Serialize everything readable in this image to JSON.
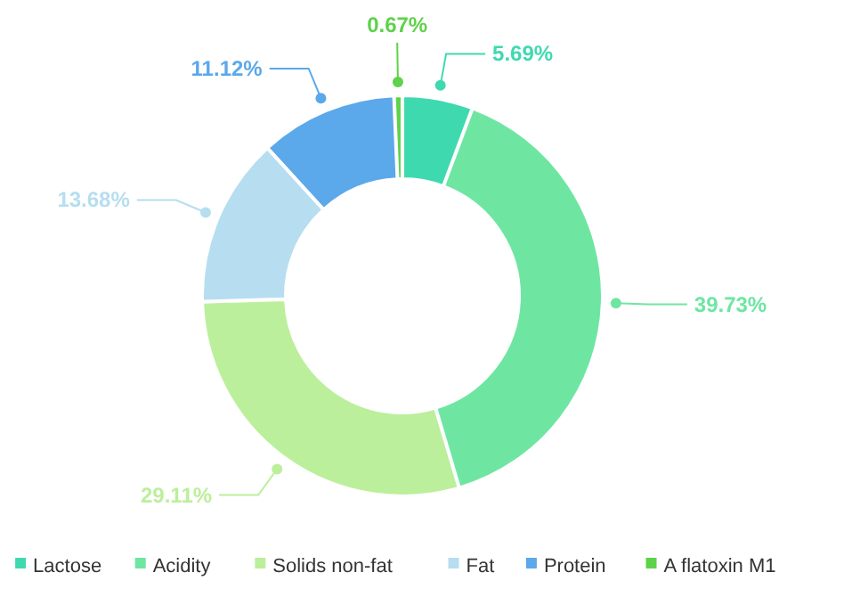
{
  "chart_data": {
    "type": "donut",
    "categories": [
      "Lactose",
      "Acidity",
      "Solids non-fat",
      "Fat",
      "Protein",
      "A flatoxin M1"
    ],
    "values": [
      5.69,
      39.73,
      29.11,
      13.68,
      11.12,
      0.67
    ],
    "colors": [
      "#3fd9b0",
      "#6ee6a2",
      "#bcef9c",
      "#b6def0",
      "#5ba8ea",
      "#5ed24a"
    ],
    "value_labels": [
      "5.69%",
      "39.73%",
      "29.11%",
      "13.68%",
      "11.12%",
      "0.67%"
    ],
    "legend": "bottom"
  }
}
